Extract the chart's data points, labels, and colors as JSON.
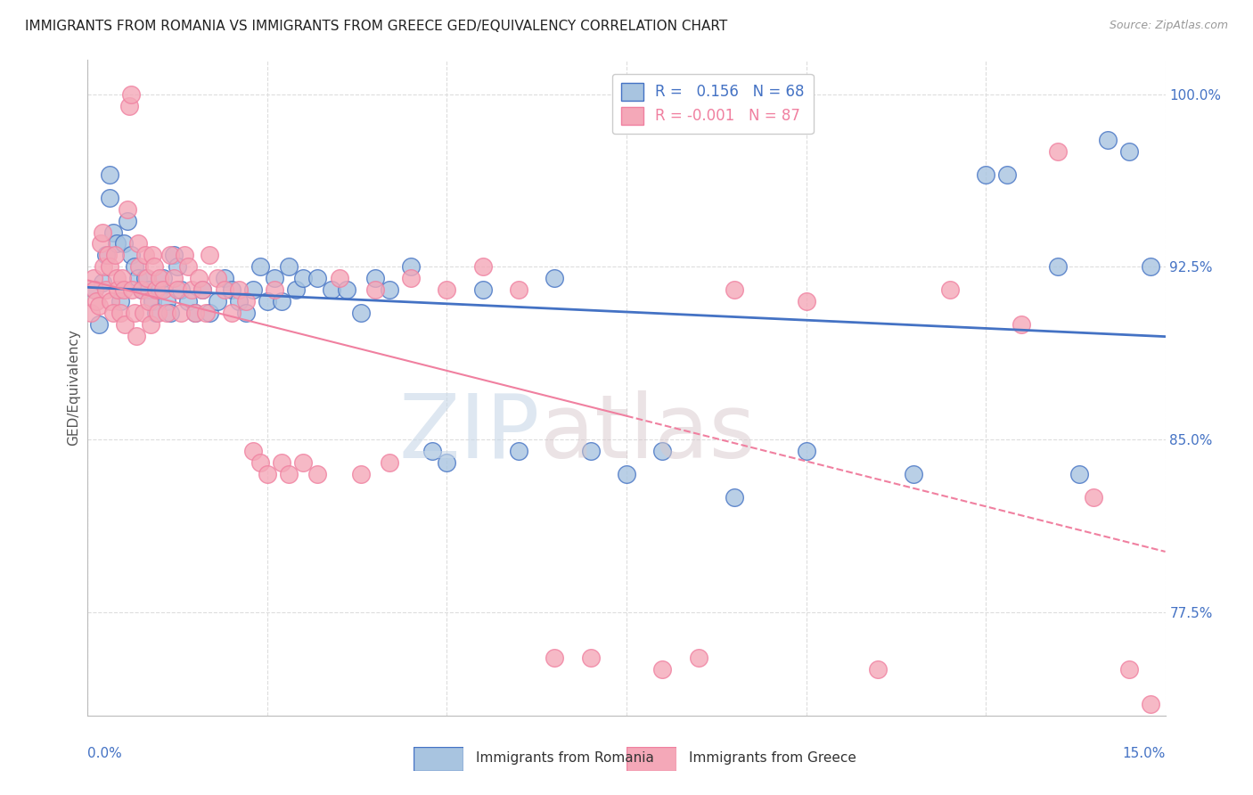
{
  "title": "IMMIGRANTS FROM ROMANIA VS IMMIGRANTS FROM GREECE GED/EQUIVALENCY CORRELATION CHART",
  "source": "Source: ZipAtlas.com",
  "ylabel": "GED/Equivalency",
  "r_romania": 0.156,
  "n_romania": 68,
  "r_greece": -0.001,
  "n_greece": 87,
  "xmin": 0.0,
  "xmax": 15.0,
  "ymin": 73.0,
  "ymax": 101.5,
  "yticks": [
    77.5,
    85.0,
    92.5,
    100.0
  ],
  "color_romania": "#a8c4e0",
  "color_greece": "#f4a8b8",
  "color_romania_line": "#4472c4",
  "color_greece_line": "#f080a0",
  "color_axis_label": "#4472c4",
  "romania_x": [
    0.1,
    0.15,
    0.2,
    0.25,
    0.3,
    0.3,
    0.35,
    0.4,
    0.45,
    0.5,
    0.55,
    0.6,
    0.65,
    0.7,
    0.75,
    0.8,
    0.85,
    0.9,
    0.95,
    1.0,
    1.05,
    1.1,
    1.15,
    1.2,
    1.25,
    1.3,
    1.4,
    1.5,
    1.6,
    1.7,
    1.8,
    1.9,
    2.0,
    2.1,
    2.2,
    2.3,
    2.4,
    2.5,
    2.6,
    2.7,
    2.8,
    2.9,
    3.0,
    3.2,
    3.4,
    3.6,
    3.8,
    4.0,
    4.2,
    4.5,
    4.8,
    5.0,
    5.5,
    6.0,
    6.5,
    7.0,
    7.5,
    8.0,
    9.0,
    10.0,
    11.5,
    12.5,
    12.8,
    13.5,
    13.8,
    14.2,
    14.5,
    14.8
  ],
  "romania_y": [
    91.5,
    90.0,
    91.8,
    93.0,
    95.5,
    96.5,
    94.0,
    93.5,
    91.0,
    93.5,
    94.5,
    93.0,
    92.5,
    92.0,
    91.5,
    92.0,
    91.5,
    91.0,
    90.5,
    91.5,
    92.0,
    91.0,
    90.5,
    93.0,
    92.5,
    91.5,
    91.0,
    90.5,
    91.5,
    90.5,
    91.0,
    92.0,
    91.5,
    91.0,
    90.5,
    91.5,
    92.5,
    91.0,
    92.0,
    91.0,
    92.5,
    91.5,
    92.0,
    92.0,
    91.5,
    91.5,
    90.5,
    92.0,
    91.5,
    92.5,
    84.5,
    84.0,
    91.5,
    84.5,
    92.0,
    84.5,
    83.5,
    84.5,
    82.5,
    84.5,
    83.5,
    96.5,
    96.5,
    92.5,
    83.5,
    98.0,
    97.5,
    92.5
  ],
  "greece_x": [
    0.05,
    0.08,
    0.1,
    0.12,
    0.15,
    0.18,
    0.2,
    0.22,
    0.25,
    0.28,
    0.3,
    0.32,
    0.35,
    0.38,
    0.4,
    0.42,
    0.45,
    0.48,
    0.5,
    0.52,
    0.55,
    0.58,
    0.6,
    0.62,
    0.65,
    0.68,
    0.7,
    0.72,
    0.75,
    0.78,
    0.8,
    0.82,
    0.85,
    0.88,
    0.9,
    0.92,
    0.95,
    0.98,
    1.0,
    1.05,
    1.1,
    1.15,
    1.2,
    1.25,
    1.3,
    1.35,
    1.4,
    1.45,
    1.5,
    1.55,
    1.6,
    1.65,
    1.7,
    1.8,
    1.9,
    2.0,
    2.1,
    2.2,
    2.3,
    2.4,
    2.5,
    2.6,
    2.7,
    2.8,
    3.0,
    3.2,
    3.5,
    3.8,
    4.0,
    4.2,
    4.5,
    5.0,
    5.5,
    6.0,
    6.5,
    7.0,
    8.0,
    8.5,
    9.0,
    10.0,
    11.0,
    12.0,
    13.0,
    13.5,
    14.0,
    14.5,
    14.8
  ],
  "greece_y": [
    90.5,
    92.0,
    91.5,
    91.0,
    90.8,
    93.5,
    94.0,
    92.5,
    91.5,
    93.0,
    92.5,
    91.0,
    90.5,
    93.0,
    92.0,
    91.5,
    90.5,
    92.0,
    91.5,
    90.0,
    95.0,
    99.5,
    100.0,
    91.5,
    90.5,
    89.5,
    93.5,
    92.5,
    91.5,
    90.5,
    93.0,
    92.0,
    91.0,
    90.0,
    93.0,
    92.5,
    91.5,
    90.5,
    92.0,
    91.5,
    90.5,
    93.0,
    92.0,
    91.5,
    90.5,
    93.0,
    92.5,
    91.5,
    90.5,
    92.0,
    91.5,
    90.5,
    93.0,
    92.0,
    91.5,
    90.5,
    91.5,
    91.0,
    84.5,
    84.0,
    83.5,
    91.5,
    84.0,
    83.5,
    84.0,
    83.5,
    92.0,
    83.5,
    91.5,
    84.0,
    92.0,
    91.5,
    92.5,
    91.5,
    75.5,
    75.5,
    75.0,
    75.5,
    91.5,
    91.0,
    75.0,
    91.5,
    90.0,
    97.5,
    82.5,
    75.0,
    73.5
  ]
}
